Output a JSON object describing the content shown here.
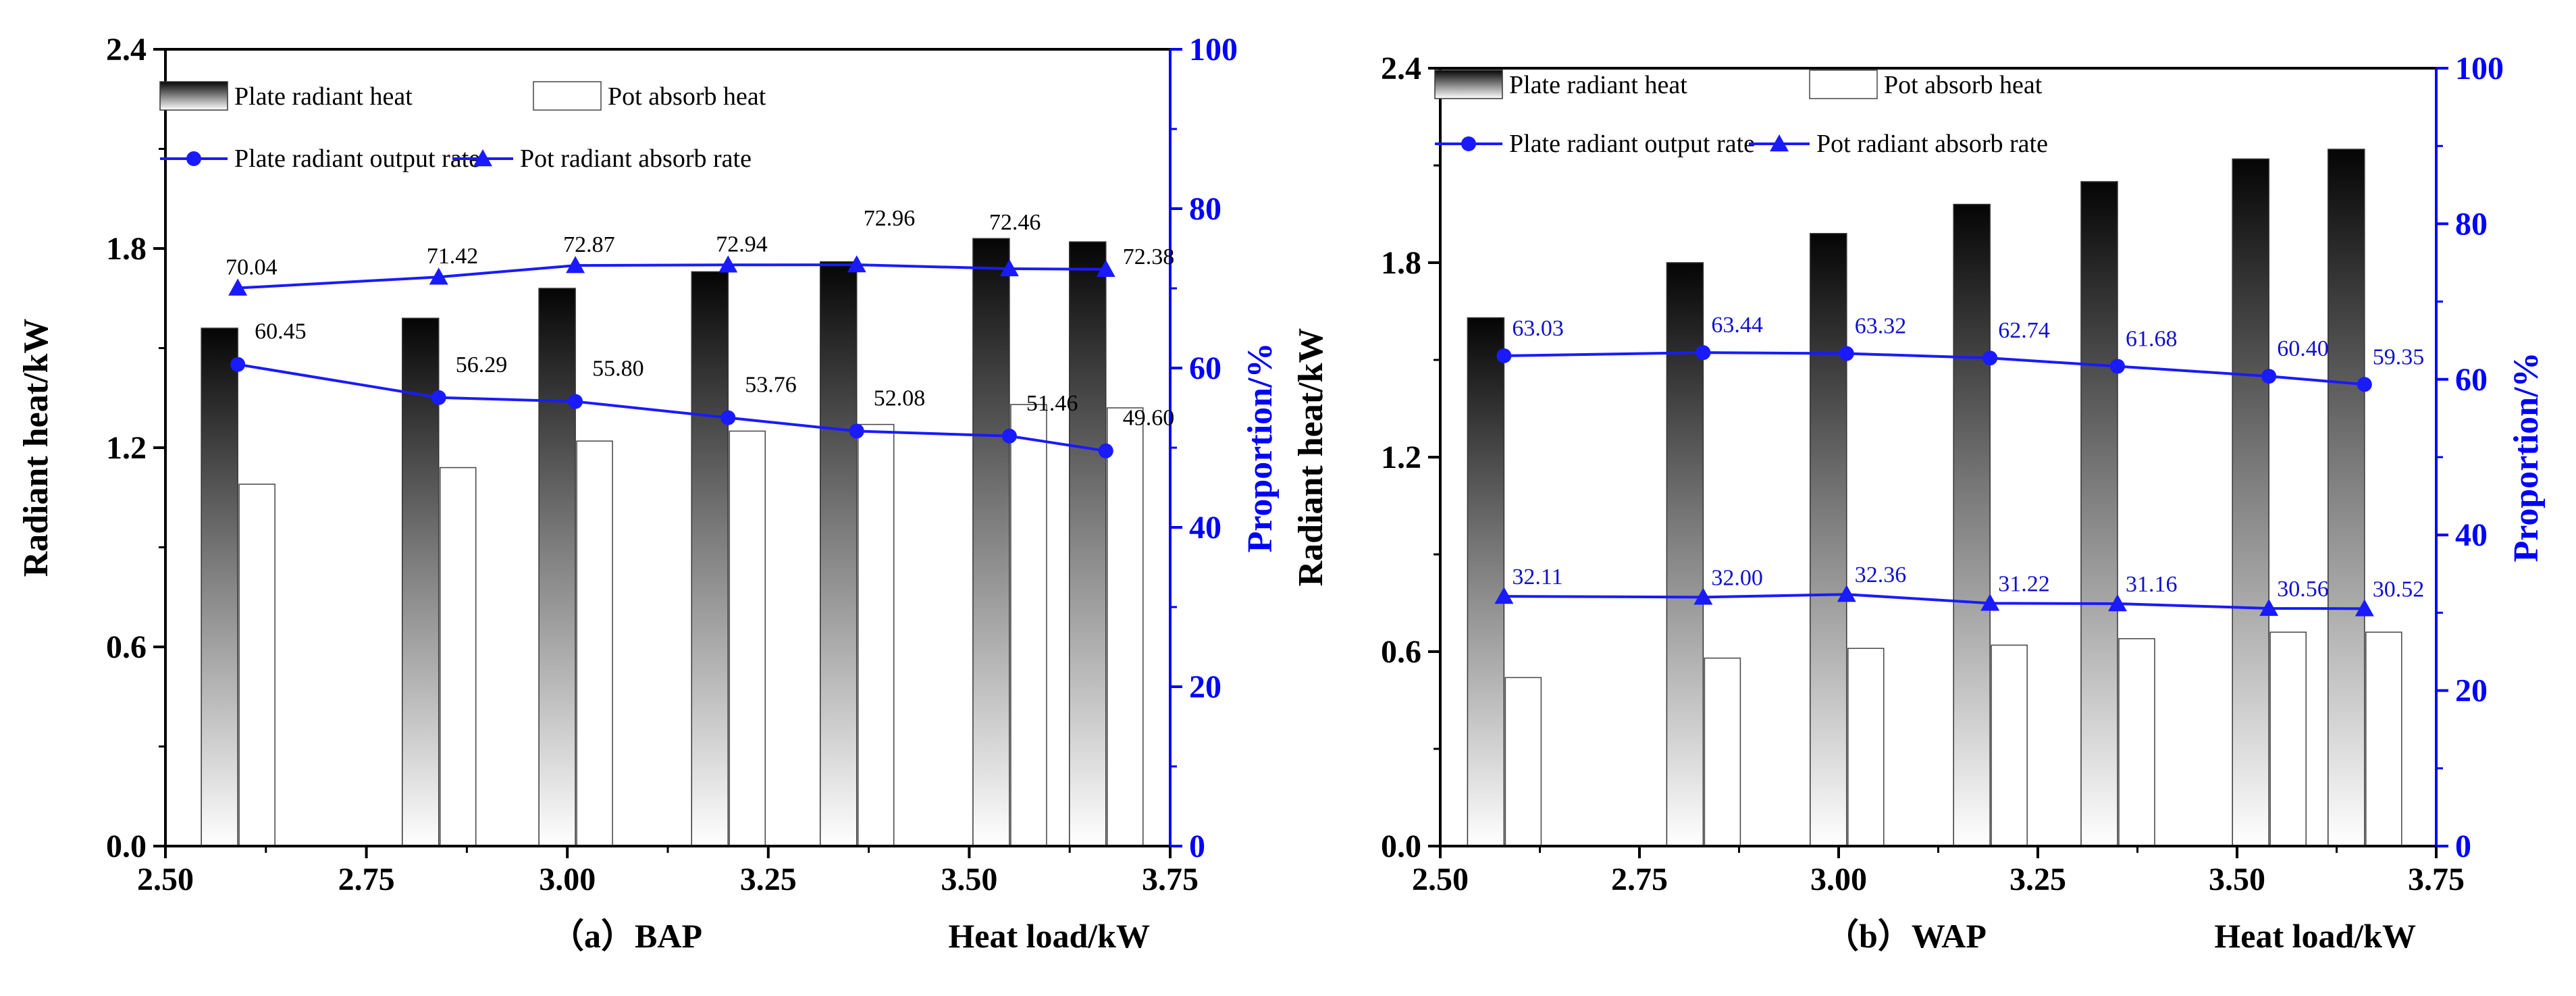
{
  "chart_data": [
    {
      "type": "bar+line",
      "panel_label": "（a）BAP",
      "xlabel": "Heat load/kW",
      "ylabel": "Radiant heat/kW",
      "y2label": "Proportion/%",
      "xlim": [
        2.5,
        3.75
      ],
      "ylim": [
        0,
        2.4
      ],
      "y2lim": [
        0,
        100
      ],
      "xticks": [
        "2.50",
        "2.75",
        "3.00",
        "3.25",
        "3.50",
        "3.75"
      ],
      "yticks": [
        "0.0",
        "0.6",
        "1.2",
        "1.8",
        "2.4"
      ],
      "y2ticks": [
        "0",
        "20",
        "40",
        "60",
        "80",
        "100"
      ],
      "x": [
        2.59,
        2.84,
        3.01,
        3.2,
        3.36,
        3.55,
        3.67
      ],
      "bars": [
        {
          "name": "Plate radiant heat",
          "values": [
            1.56,
            1.59,
            1.68,
            1.73,
            1.76,
            1.83,
            1.82
          ]
        },
        {
          "name": "Pot absorb heat",
          "values": [
            1.09,
            1.14,
            1.22,
            1.25,
            1.27,
            1.33,
            1.32
          ]
        }
      ],
      "lines": [
        {
          "name": "Plate radiant output rate",
          "marker": "circle",
          "values": [
            60.45,
            56.29,
            55.8,
            53.76,
            52.08,
            51.46,
            49.6
          ],
          "labels": [
            "60.45",
            "56.29",
            "55.80",
            "53.76",
            "52.08",
            "51.46",
            "49.60"
          ]
        },
        {
          "name": "Pot radiant absorb rate",
          "marker": "triangle",
          "values": [
            70.04,
            71.42,
            72.87,
            72.94,
            72.96,
            72.46,
            72.38
          ],
          "labels": [
            "70.04",
            "71.42",
            "72.87",
            "72.94",
            "72.96",
            "72.46",
            "72.38"
          ]
        }
      ],
      "legend": [
        "Plate radiant heat",
        "Pot absorb heat",
        "Plate radiant output rate",
        "Pot radiant absorb rate"
      ]
    },
    {
      "type": "bar+line",
      "panel_label": "（b）WAP",
      "xlabel": "Heat load/kW",
      "ylabel": "Radiant heat/kW",
      "y2label": "Proportion/%",
      "xlim": [
        2.5,
        3.75
      ],
      "ylim": [
        0,
        2.4
      ],
      "y2lim": [
        0,
        100
      ],
      "xticks": [
        "2.50",
        "2.75",
        "3.00",
        "3.25",
        "3.50",
        "3.75"
      ],
      "yticks": [
        "0.0",
        "0.6",
        "1.2",
        "1.8",
        "2.4"
      ],
      "y2ticks": [
        "0",
        "20",
        "40",
        "60",
        "80",
        "100"
      ],
      "x": [
        2.58,
        2.83,
        3.01,
        3.19,
        3.35,
        3.54,
        3.66
      ],
      "bars": [
        {
          "name": "Plate radiant heat",
          "values": [
            1.63,
            1.8,
            1.89,
            1.98,
            2.05,
            2.12,
            2.15
          ]
        },
        {
          "name": "Pot absorb heat",
          "values": [
            0.52,
            0.58,
            0.61,
            0.62,
            0.64,
            0.66,
            0.66
          ]
        }
      ],
      "lines": [
        {
          "name": "Plate radiant output rate",
          "marker": "circle",
          "values": [
            63.03,
            63.44,
            63.32,
            62.74,
            61.68,
            60.4,
            59.35
          ],
          "labels": [
            "63.03",
            "63.44",
            "63.32",
            "62.74",
            "61.68",
            "60.40",
            "59.35"
          ]
        },
        {
          "name": "Pot radiant absorb rate",
          "marker": "triangle",
          "values": [
            32.11,
            32.0,
            32.36,
            31.22,
            31.16,
            30.56,
            30.52
          ],
          "labels": [
            "32.11",
            "32.00",
            "32.36",
            "31.22",
            "31.16",
            "30.56",
            "30.52"
          ]
        }
      ],
      "legend": [
        "Plate radiant heat",
        "Pot absorb heat",
        "Plate radiant output rate",
        "Pot radiant absorb rate"
      ]
    }
  ],
  "colors": {
    "axis": "#000000",
    "accent_axis": "#0000ff",
    "line": "#1a1aff",
    "label_blue": "#1010d0",
    "bar_dark": "#0a0a0a",
    "bar_light": "#ffffff",
    "bar_outline": "#444444"
  }
}
